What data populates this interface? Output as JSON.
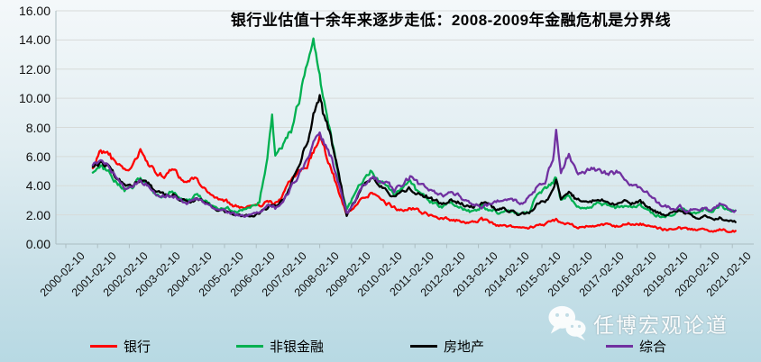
{
  "watermark": {
    "text": "任博宏观论道",
    "icon": "wechat-icon"
  },
  "colors": {
    "background_top": "#F4F8FA",
    "background_bottom": "#B7D9E3",
    "gridline": "#D7DBD9",
    "axis": "#ABBCC1",
    "bank": "#FF0000",
    "nonbank": "#00B050",
    "realestate": "#000000",
    "composite": "#7030A0"
  },
  "chart_data": {
    "type": "line",
    "title": "银行业估值十余年来逐步走低：2008-2009年金融危机是分界线",
    "xlabel": "",
    "ylabel": "",
    "ylim": [
      0,
      16
    ],
    "ytick_step": 2,
    "grid": true,
    "legend_position": "bottom",
    "ytick_labels": [
      "0.00",
      "2.00",
      "4.00",
      "6.00",
      "8.00",
      "10.00",
      "12.00",
      "14.00",
      "16.00"
    ],
    "xtick_labels": [
      "2000-02-10",
      "2001-02-10",
      "2002-02-10",
      "2003-02-10",
      "2004-02-10",
      "2005-02-10",
      "2006-02-10",
      "2007-02-10",
      "2008-02-10",
      "2009-02-10",
      "2010-02-10",
      "2011-02-10",
      "2012-02-10",
      "2013-02-10",
      "2014-02-10",
      "2015-02-10",
      "2016-02-10",
      "2017-02-10",
      "2018-02-10",
      "2019-02-10",
      "2020-02-10",
      "2021-02-10"
    ],
    "x_years": [
      2000.85,
      2001.1,
      2001.35,
      2001.6,
      2001.85,
      2002.1,
      2002.35,
      2002.6,
      2002.85,
      2003.1,
      2003.35,
      2003.6,
      2003.85,
      2004.1,
      2004.35,
      2004.6,
      2004.85,
      2005.1,
      2005.35,
      2005.6,
      2005.85,
      2006.1,
      2006.35,
      2006.5,
      2006.6,
      2006.85,
      2007.1,
      2007.35,
      2007.6,
      2007.8,
      2008.0,
      2008.1,
      2008.35,
      2008.6,
      2008.85,
      2009.1,
      2009.35,
      2009.6,
      2009.85,
      2010.1,
      2010.35,
      2010.6,
      2010.85,
      2011.1,
      2011.35,
      2011.6,
      2011.85,
      2012.1,
      2012.35,
      2012.6,
      2012.85,
      2013.1,
      2013.35,
      2013.6,
      2013.85,
      2014.1,
      2014.35,
      2014.6,
      2014.85,
      2015.1,
      2015.35,
      2015.45,
      2015.6,
      2015.85,
      2015.95,
      2016.1,
      2016.35,
      2016.6,
      2016.85,
      2017.1,
      2017.35,
      2017.6,
      2017.85,
      2018.1,
      2018.35,
      2018.6,
      2018.85,
      2019.1,
      2019.35,
      2019.6,
      2019.85,
      2020.1,
      2020.35,
      2020.6,
      2020.85,
      2021.1
    ],
    "series": [
      {
        "name": "银行",
        "color": "#FF0000",
        "values": [
          5.2,
          6.5,
          6.2,
          5.4,
          5.0,
          5.3,
          6.3,
          5.6,
          4.8,
          4.7,
          5.3,
          4.6,
          4.2,
          4.6,
          3.9,
          3.4,
          3.1,
          2.9,
          2.6,
          2.4,
          2.5,
          2.6,
          2.9,
          2.8,
          2.8,
          3.4,
          4.4,
          5.0,
          5.4,
          6.3,
          7.3,
          6.8,
          5.2,
          3.6,
          2.1,
          2.6,
          3.1,
          3.4,
          3.2,
          2.8,
          2.5,
          2.3,
          2.5,
          2.3,
          2.1,
          1.9,
          1.8,
          1.7,
          1.6,
          1.5,
          1.5,
          1.7,
          1.5,
          1.3,
          1.3,
          1.2,
          1.1,
          1.1,
          1.3,
          1.4,
          1.6,
          1.7,
          1.4,
          1.5,
          1.4,
          1.2,
          1.2,
          1.2,
          1.3,
          1.3,
          1.2,
          1.3,
          1.4,
          1.4,
          1.2,
          1.1,
          1.0,
          1.0,
          1.1,
          1.0,
          1.0,
          1.0,
          0.9,
          1.0,
          0.9,
          0.9
        ]
      },
      {
        "name": "非银金融",
        "color": "#00B050",
        "values": [
          4.9,
          5.3,
          5.0,
          4.2,
          3.7,
          3.9,
          4.5,
          4.1,
          3.4,
          3.3,
          3.6,
          3.1,
          2.9,
          3.4,
          3.0,
          2.6,
          2.4,
          2.4,
          2.2,
          2.3,
          2.5,
          2.9,
          6.0,
          8.9,
          6.0,
          6.8,
          7.8,
          9.8,
          12.5,
          14.2,
          11.5,
          10.0,
          7.5,
          4.5,
          2.4,
          3.4,
          4.4,
          5.0,
          4.4,
          4.0,
          3.4,
          3.8,
          4.3,
          3.5,
          3.2,
          2.8,
          2.6,
          2.8,
          2.6,
          2.3,
          2.2,
          2.6,
          2.4,
          2.2,
          2.3,
          2.1,
          2.0,
          2.2,
          3.4,
          3.7,
          4.3,
          4.5,
          3.0,
          3.4,
          3.1,
          2.6,
          2.5,
          2.6,
          2.8,
          2.6,
          2.5,
          2.6,
          2.5,
          2.6,
          2.3,
          2.0,
          1.9,
          2.0,
          2.4,
          2.2,
          2.2,
          2.4,
          2.2,
          2.6,
          2.4,
          2.3
        ]
      },
      {
        "name": "房地产",
        "color": "#000000",
        "values": [
          5.3,
          5.6,
          5.3,
          4.5,
          4.0,
          4.1,
          4.4,
          4.1,
          3.5,
          3.4,
          3.5,
          3.1,
          2.9,
          3.1,
          2.9,
          2.5,
          2.3,
          2.2,
          2.0,
          1.9,
          2.0,
          2.1,
          2.5,
          2.6,
          2.5,
          3.1,
          4.1,
          5.5,
          7.0,
          8.8,
          10.0,
          9.0,
          7.3,
          4.8,
          2.0,
          2.9,
          3.9,
          4.5,
          4.2,
          3.8,
          3.2,
          3.5,
          3.8,
          3.5,
          3.3,
          3.0,
          2.8,
          3.0,
          2.9,
          2.6,
          2.5,
          2.8,
          2.6,
          2.4,
          2.4,
          2.2,
          2.0,
          2.2,
          2.7,
          2.9,
          3.6,
          4.4,
          3.1,
          3.7,
          3.4,
          3.0,
          2.9,
          3.0,
          3.1,
          2.9,
          2.8,
          2.9,
          2.8,
          2.9,
          2.6,
          2.2,
          2.0,
          2.1,
          2.3,
          2.0,
          1.9,
          1.9,
          1.7,
          1.8,
          1.6,
          1.5
        ]
      },
      {
        "name": "综合",
        "color": "#7030A0",
        "values": [
          5.4,
          5.6,
          5.3,
          4.4,
          3.9,
          4.0,
          4.3,
          4.0,
          3.4,
          3.3,
          3.4,
          3.0,
          2.8,
          3.1,
          2.9,
          2.5,
          2.3,
          2.2,
          2.0,
          1.9,
          2.0,
          2.1,
          2.5,
          2.6,
          2.5,
          3.0,
          3.9,
          4.8,
          5.8,
          7.0,
          7.8,
          7.2,
          6.0,
          4.2,
          2.0,
          2.9,
          3.9,
          4.6,
          4.4,
          4.3,
          3.7,
          4.1,
          4.6,
          4.2,
          4.0,
          3.6,
          3.3,
          3.5,
          3.3,
          3.0,
          2.7,
          2.5,
          2.7,
          2.9,
          3.1,
          3.0,
          2.8,
          3.2,
          3.9,
          4.3,
          6.0,
          7.8,
          5.0,
          6.2,
          5.5,
          4.8,
          5.0,
          5.2,
          5.0,
          4.8,
          4.9,
          4.6,
          4.0,
          3.8,
          3.4,
          2.9,
          2.6,
          2.4,
          2.6,
          2.3,
          2.4,
          2.5,
          2.3,
          2.7,
          2.5,
          2.3
        ]
      }
    ]
  }
}
